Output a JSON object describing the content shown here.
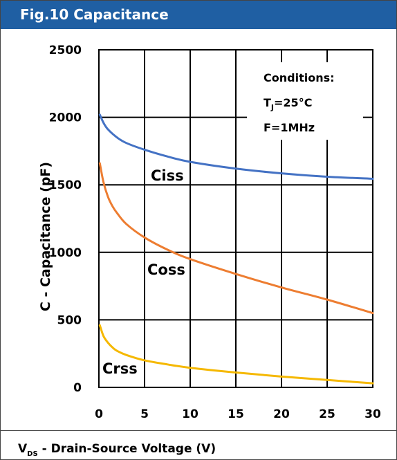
{
  "header": {
    "title": "Fig.10 Capacitance"
  },
  "chart_data": {
    "type": "line",
    "title": "Fig.10 Capacitance",
    "xlabel": {
      "main": "V",
      "sub": "DS",
      "rest": " - Drain-Source Voltage (V)"
    },
    "ylabel": "C - Capacitance (pF)",
    "xlim": [
      0,
      30
    ],
    "ylim": [
      0,
      2500
    ],
    "xticks": [
      0,
      5,
      10,
      15,
      20,
      25,
      30
    ],
    "yticks": [
      0,
      500,
      1000,
      1500,
      2000,
      2500
    ],
    "grid": true,
    "conditions": {
      "heading": "Conditions:",
      "temp": {
        "main": "T",
        "sub": "J",
        "rest": "=25°C"
      },
      "freq": "F=1MHz"
    },
    "series": [
      {
        "name": "Ciss",
        "color": "#4472c4",
        "x": [
          0.1,
          0.5,
          1,
          2,
          3,
          5,
          7.5,
          10,
          15,
          20,
          25,
          30
        ],
        "y": [
          2020,
          1960,
          1910,
          1850,
          1810,
          1760,
          1710,
          1670,
          1620,
          1585,
          1560,
          1545
        ]
      },
      {
        "name": "Coss",
        "color": "#ed7d31",
        "x": [
          0.1,
          0.5,
          1,
          1.5,
          2,
          3,
          5,
          7.5,
          10,
          15,
          20,
          25,
          30
        ],
        "y": [
          1660,
          1520,
          1410,
          1340,
          1290,
          1210,
          1110,
          1020,
          950,
          840,
          740,
          650,
          550
        ]
      },
      {
        "name": "Crss",
        "color": "#f5b800",
        "x": [
          0.1,
          0.5,
          1,
          1.5,
          2,
          3,
          5,
          7.5,
          10,
          15,
          20,
          25,
          30
        ],
        "y": [
          460,
          380,
          330,
          295,
          270,
          240,
          200,
          170,
          145,
          110,
          80,
          55,
          30
        ]
      }
    ]
  }
}
